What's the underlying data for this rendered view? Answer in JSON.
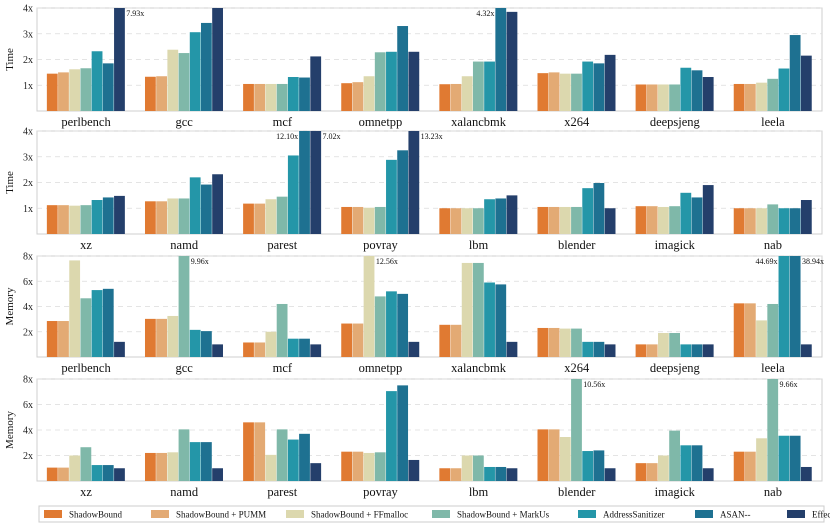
{
  "series_names": [
    "ShadowBound",
    "ShadowBound + PUMM",
    "ShadowBound + FFmalloc",
    "ShadowBound + MarkUs",
    "AddressSanitizer",
    "ASAN--",
    "EffectiveSan"
  ],
  "series_colors": [
    "#e07a32",
    "#e3aa74",
    "#dcd8ae",
    "#7fb8a9",
    "#2496a8",
    "#1e7191",
    "#243f6b"
  ],
  "chart_data": [
    {
      "type": "bar",
      "ylabel": "Time",
      "ylim": [
        0,
        4
      ],
      "yticks": [
        "1x",
        "2x",
        "3x",
        "4x"
      ],
      "tick_values": [
        1,
        2,
        3,
        4
      ],
      "categories": [
        "perlbench",
        "gcc",
        "mcf",
        "omnetpp",
        "xalancbmk",
        "x264",
        "deepsjeng",
        "leela"
      ],
      "values": [
        [
          1.45,
          1.5,
          1.62,
          1.66,
          2.32,
          1.85,
          7.93
        ],
        [
          1.33,
          1.35,
          2.38,
          2.25,
          3.06,
          3.42,
          4.0
        ],
        [
          1.05,
          1.05,
          1.05,
          1.05,
          1.32,
          1.3,
          2.12
        ],
        [
          1.08,
          1.12,
          1.35,
          2.28,
          2.3,
          3.3,
          2.3
        ],
        [
          1.04,
          1.05,
          1.35,
          1.92,
          1.92,
          4.32,
          3.85
        ],
        [
          1.47,
          1.5,
          1.45,
          1.45,
          1.92,
          1.85,
          2.18
        ],
        [
          1.03,
          1.03,
          1.03,
          1.03,
          1.68,
          1.58,
          1.32
        ],
        [
          1.05,
          1.05,
          1.1,
          1.25,
          1.65,
          2.95,
          2.15
        ]
      ],
      "annotations": [
        {
          "category": "perlbench",
          "series": 6,
          "text": "7.93x"
        },
        {
          "category": "xalancbmk",
          "series": 5,
          "text": "4.32x"
        }
      ]
    },
    {
      "type": "bar",
      "ylabel": "Time",
      "ylim": [
        0,
        4
      ],
      "yticks": [
        "1x",
        "2x",
        "3x",
        "4x"
      ],
      "tick_values": [
        1,
        2,
        3,
        4
      ],
      "categories": [
        "xz",
        "namd",
        "parest",
        "povray",
        "lbm",
        "blender",
        "imagick",
        "nab"
      ],
      "values": [
        [
          1.12,
          1.12,
          1.1,
          1.12,
          1.32,
          1.42,
          1.48
        ],
        [
          1.27,
          1.27,
          1.38,
          1.38,
          2.2,
          1.92,
          2.32
        ],
        [
          1.18,
          1.18,
          1.35,
          1.45,
          3.05,
          12.1,
          7.02
        ],
        [
          1.05,
          1.05,
          1.02,
          1.05,
          2.88,
          3.25,
          13.23
        ],
        [
          1.0,
          1.0,
          1.0,
          1.0,
          1.35,
          1.38,
          1.5
        ],
        [
          1.05,
          1.05,
          1.05,
          1.05,
          1.78,
          1.98,
          1.0
        ],
        [
          1.08,
          1.08,
          1.05,
          1.08,
          1.6,
          1.42,
          1.9
        ],
        [
          1.0,
          1.0,
          1.0,
          1.15,
          1.0,
          1.0,
          1.32
        ]
      ],
      "annotations": [
        {
          "category": "parest",
          "series": 5,
          "text": "12.10x"
        },
        {
          "category": "parest",
          "series": 6,
          "text": "7.02x"
        },
        {
          "category": "povray",
          "series": 6,
          "text": "13.23x"
        }
      ]
    },
    {
      "type": "bar",
      "ylabel": "Memory",
      "ylim": [
        0,
        8
      ],
      "yticks": [
        "2x",
        "4x",
        "6x",
        "8x"
      ],
      "tick_values": [
        2,
        4,
        6,
        8
      ],
      "categories": [
        "perlbench",
        "gcc",
        "mcf",
        "omnetpp",
        "xalancbmk",
        "x264",
        "deepsjeng",
        "leela"
      ],
      "values": [
        [
          2.85,
          2.85,
          7.65,
          4.65,
          5.3,
          5.4,
          1.2
        ],
        [
          3.02,
          3.02,
          3.25,
          9.96,
          2.15,
          2.05,
          1.0
        ],
        [
          1.15,
          1.15,
          2.0,
          4.2,
          1.45,
          1.45,
          1.0
        ],
        [
          2.65,
          2.65,
          12.56,
          4.8,
          5.2,
          5.0,
          1.2
        ],
        [
          2.55,
          2.55,
          7.45,
          7.45,
          5.9,
          5.75,
          1.2
        ],
        [
          2.3,
          2.3,
          2.25,
          2.25,
          1.2,
          1.2,
          1.0
        ],
        [
          1.0,
          1.0,
          1.9,
          1.9,
          1.0,
          1.0,
          1.0
        ],
        [
          4.25,
          4.25,
          2.9,
          4.2,
          44.69,
          38.94,
          1.0
        ]
      ],
      "annotations": [
        {
          "category": "gcc",
          "series": 3,
          "text": "9.96x"
        },
        {
          "category": "omnetpp",
          "series": 2,
          "text": "12.56x"
        },
        {
          "category": "leela",
          "series": 4,
          "text": "44.69x"
        },
        {
          "category": "leela",
          "series": 5,
          "text": "38.94x"
        }
      ]
    },
    {
      "type": "bar",
      "ylabel": "Memory",
      "ylim": [
        0,
        8
      ],
      "yticks": [
        "2x",
        "4x",
        "6x",
        "8x"
      ],
      "tick_values": [
        2,
        4,
        6,
        8
      ],
      "categories": [
        "xz",
        "namd",
        "parest",
        "povray",
        "lbm",
        "blender",
        "imagick",
        "nab"
      ],
      "values": [
        [
          1.05,
          1.05,
          2.0,
          2.65,
          1.25,
          1.25,
          1.0
        ],
        [
          2.2,
          2.2,
          2.25,
          4.05,
          3.05,
          3.05,
          1.0
        ],
        [
          4.6,
          4.6,
          2.05,
          4.05,
          3.25,
          3.7,
          1.4
        ],
        [
          2.3,
          2.3,
          2.2,
          2.25,
          7.05,
          7.5,
          1.65
        ],
        [
          1.0,
          1.0,
          2.0,
          2.0,
          1.1,
          1.1,
          1.0
        ],
        [
          4.05,
          4.05,
          3.45,
          10.56,
          2.35,
          2.4,
          1.0
        ],
        [
          1.4,
          1.4,
          2.0,
          3.95,
          2.8,
          2.8,
          1.0
        ],
        [
          2.3,
          2.3,
          3.35,
          9.66,
          3.55,
          3.55,
          1.1
        ]
      ],
      "annotations": [
        {
          "category": "blender",
          "series": 3,
          "text": "10.56x"
        },
        {
          "category": "nab",
          "series": 3,
          "text": "9.66x"
        }
      ]
    }
  ]
}
